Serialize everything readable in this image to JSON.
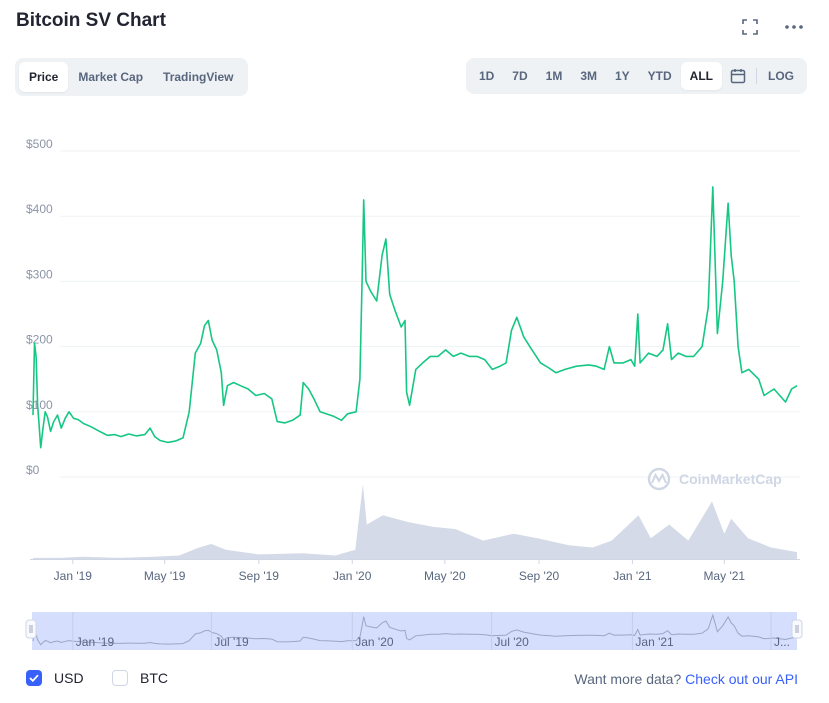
{
  "header": {
    "title": "Bitcoin SV Chart",
    "fullscreen_icon": "fullscreen-icon",
    "more_icon": "more-horizontal-icon"
  },
  "tabs": [
    {
      "label": "Price",
      "active": true
    },
    {
      "label": "Market Cap",
      "active": false
    },
    {
      "label": "TradingView",
      "active": false
    }
  ],
  "ranges": [
    {
      "label": "1D",
      "active": false
    },
    {
      "label": "7D",
      "active": false
    },
    {
      "label": "1M",
      "active": false
    },
    {
      "label": "3M",
      "active": false
    },
    {
      "label": "1Y",
      "active": false
    },
    {
      "label": "YTD",
      "active": false
    },
    {
      "label": "ALL",
      "active": true
    }
  ],
  "calendar_icon": "calendar-icon",
  "log_label": "LOG",
  "watermark": "CoinMarketCap",
  "footer": {
    "usd_label": "USD",
    "usd_checked": true,
    "btc_label": "BTC",
    "btc_checked": false,
    "api_text": "Want more data?",
    "api_link": "Check out our API"
  },
  "colors": {
    "line": "#16c784",
    "volume": "#cfd6e4",
    "navigator_fill": "#d6defd",
    "accent": "#3861fb"
  },
  "chart_data": {
    "type": "line",
    "ylim": [
      0,
      500
    ],
    "y_ticks": [
      "$0",
      "$100",
      "$200",
      "$300",
      "$400",
      "$500"
    ],
    "y_tick_values": [
      0,
      100,
      200,
      300,
      400,
      500
    ],
    "x_tick_labels": [
      "Jan '19",
      "May '19",
      "Sep '19",
      "Jan '20",
      "May '20",
      "Sep '20",
      "Jan '21",
      "May '21"
    ],
    "x_tick_dates": [
      "2019-01-01",
      "2019-05-01",
      "2019-09-01",
      "2020-01-01",
      "2020-05-01",
      "2020-09-01",
      "2021-01-01",
      "2021-05-01"
    ],
    "navigator_labels": [
      "Jan '19",
      "Jul '19",
      "Jan '20",
      "Jul '20",
      "Jan '21",
      "J..."
    ],
    "navigator_dates": [
      "2019-01-01",
      "2019-07-01",
      "2020-01-01",
      "2020-07-01",
      "2021-01-01",
      "2021-07-01"
    ],
    "grid": true,
    "price": [
      [
        "2018-11-10",
        95
      ],
      [
        "2018-11-12",
        205
      ],
      [
        "2018-11-14",
        185
      ],
      [
        "2018-11-16",
        110
      ],
      [
        "2018-11-18",
        80
      ],
      [
        "2018-11-20",
        45
      ],
      [
        "2018-11-23",
        75
      ],
      [
        "2018-11-26",
        100
      ],
      [
        "2018-11-29",
        92
      ],
      [
        "2018-12-03",
        70
      ],
      [
        "2018-12-07",
        85
      ],
      [
        "2018-12-12",
        95
      ],
      [
        "2018-12-17",
        75
      ],
      [
        "2018-12-22",
        90
      ],
      [
        "2018-12-27",
        100
      ],
      [
        "2019-01-02",
        90
      ],
      [
        "2019-01-08",
        88
      ],
      [
        "2019-01-15",
        82
      ],
      [
        "2019-01-25",
        77
      ],
      [
        "2019-02-05",
        70
      ],
      [
        "2019-02-15",
        64
      ],
      [
        "2019-02-25",
        65
      ],
      [
        "2019-03-05",
        62
      ],
      [
        "2019-03-15",
        66
      ],
      [
        "2019-03-25",
        63
      ],
      [
        "2019-04-05",
        65
      ],
      [
        "2019-04-12",
        75
      ],
      [
        "2019-04-18",
        62
      ],
      [
        "2019-04-25",
        56
      ],
      [
        "2019-05-05",
        53
      ],
      [
        "2019-05-15",
        55
      ],
      [
        "2019-05-25",
        60
      ],
      [
        "2019-06-02",
        100
      ],
      [
        "2019-06-10",
        190
      ],
      [
        "2019-06-17",
        205
      ],
      [
        "2019-06-22",
        232
      ],
      [
        "2019-06-27",
        240
      ],
      [
        "2019-07-02",
        210
      ],
      [
        "2019-07-08",
        195
      ],
      [
        "2019-07-14",
        160
      ],
      [
        "2019-07-17",
        110
      ],
      [
        "2019-07-22",
        140
      ],
      [
        "2019-07-30",
        145
      ],
      [
        "2019-08-08",
        140
      ],
      [
        "2019-08-18",
        135
      ],
      [
        "2019-08-28",
        125
      ],
      [
        "2019-09-08",
        128
      ],
      [
        "2019-09-18",
        120
      ],
      [
        "2019-09-25",
        85
      ],
      [
        "2019-10-05",
        83
      ],
      [
        "2019-10-15",
        87
      ],
      [
        "2019-10-25",
        95
      ],
      [
        "2019-10-29",
        145
      ],
      [
        "2019-11-05",
        135
      ],
      [
        "2019-11-12",
        120
      ],
      [
        "2019-11-20",
        100
      ],
      [
        "2019-11-28",
        97
      ],
      [
        "2019-12-08",
        93
      ],
      [
        "2019-12-18",
        87
      ],
      [
        "2019-12-26",
        97
      ],
      [
        "2020-01-06",
        100
      ],
      [
        "2020-01-11",
        150
      ],
      [
        "2020-01-14",
        310
      ],
      [
        "2020-01-16",
        425
      ],
      [
        "2020-01-19",
        300
      ],
      [
        "2020-01-25",
        285
      ],
      [
        "2020-02-02",
        270
      ],
      [
        "2020-02-09",
        340
      ],
      [
        "2020-02-14",
        365
      ],
      [
        "2020-02-19",
        280
      ],
      [
        "2020-02-26",
        255
      ],
      [
        "2020-03-05",
        230
      ],
      [
        "2020-03-10",
        240
      ],
      [
        "2020-03-12",
        130
      ],
      [
        "2020-03-16",
        110
      ],
      [
        "2020-03-24",
        165
      ],
      [
        "2020-04-02",
        175
      ],
      [
        "2020-04-12",
        185
      ],
      [
        "2020-04-22",
        185
      ],
      [
        "2020-05-02",
        195
      ],
      [
        "2020-05-12",
        185
      ],
      [
        "2020-05-22",
        190
      ],
      [
        "2020-06-02",
        185
      ],
      [
        "2020-06-12",
        185
      ],
      [
        "2020-06-22",
        180
      ],
      [
        "2020-07-02",
        165
      ],
      [
        "2020-07-12",
        170
      ],
      [
        "2020-07-20",
        175
      ],
      [
        "2020-07-27",
        225
      ],
      [
        "2020-08-03",
        245
      ],
      [
        "2020-08-12",
        215
      ],
      [
        "2020-08-20",
        200
      ],
      [
        "2020-09-03",
        175
      ],
      [
        "2020-09-13",
        168
      ],
      [
        "2020-09-23",
        160
      ],
      [
        "2020-10-05",
        165
      ],
      [
        "2020-10-20",
        170
      ],
      [
        "2020-11-05",
        172
      ],
      [
        "2020-11-15",
        170
      ],
      [
        "2020-11-25",
        165
      ],
      [
        "2020-12-02",
        200
      ],
      [
        "2020-12-08",
        175
      ],
      [
        "2020-12-20",
        175
      ],
      [
        "2020-12-30",
        180
      ],
      [
        "2021-01-04",
        170
      ],
      [
        "2021-01-08",
        250
      ],
      [
        "2021-01-11",
        175
      ],
      [
        "2021-01-22",
        190
      ],
      [
        "2021-02-02",
        185
      ],
      [
        "2021-02-10",
        195
      ],
      [
        "2021-02-16",
        235
      ],
      [
        "2021-02-21",
        180
      ],
      [
        "2021-03-02",
        190
      ],
      [
        "2021-03-12",
        185
      ],
      [
        "2021-03-22",
        185
      ],
      [
        "2021-04-02",
        200
      ],
      [
        "2021-04-10",
        260
      ],
      [
        "2021-04-16",
        445
      ],
      [
        "2021-04-22",
        220
      ],
      [
        "2021-04-29",
        300
      ],
      [
        "2021-05-06",
        420
      ],
      [
        "2021-05-10",
        340
      ],
      [
        "2021-05-14",
        300
      ],
      [
        "2021-05-19",
        200
      ],
      [
        "2021-05-24",
        160
      ],
      [
        "2021-06-02",
        165
      ],
      [
        "2021-06-15",
        150
      ],
      [
        "2021-06-22",
        125
      ],
      [
        "2021-07-05",
        135
      ],
      [
        "2021-07-20",
        115
      ],
      [
        "2021-07-28",
        135
      ],
      [
        "2021-08-04",
        140
      ]
    ],
    "volume": [
      [
        "2018-11-10",
        1
      ],
      [
        "2018-12-15",
        1
      ],
      [
        "2019-01-15",
        2
      ],
      [
        "2019-03-01",
        1
      ],
      [
        "2019-04-15",
        2
      ],
      [
        "2019-05-20",
        3
      ],
      [
        "2019-06-15",
        10
      ],
      [
        "2019-07-01",
        13
      ],
      [
        "2019-07-20",
        8
      ],
      [
        "2019-09-01",
        4
      ],
      [
        "2019-10-29",
        5
      ],
      [
        "2019-12-10",
        3
      ],
      [
        "2020-01-05",
        8
      ],
      [
        "2020-01-15",
        65
      ],
      [
        "2020-01-20",
        30
      ],
      [
        "2020-02-10",
        38
      ],
      [
        "2020-03-15",
        32
      ],
      [
        "2020-04-15",
        28
      ],
      [
        "2020-05-15",
        26
      ],
      [
        "2020-06-20",
        16
      ],
      [
        "2020-07-30",
        22
      ],
      [
        "2020-08-30",
        18
      ],
      [
        "2020-10-10",
        12
      ],
      [
        "2020-11-10",
        10
      ],
      [
        "2020-12-05",
        16
      ],
      [
        "2021-01-09",
        38
      ],
      [
        "2021-01-25",
        18
      ],
      [
        "2021-02-18",
        30
      ],
      [
        "2021-03-15",
        16
      ],
      [
        "2021-04-15",
        50
      ],
      [
        "2021-05-01",
        22
      ],
      [
        "2021-05-10",
        35
      ],
      [
        "2021-06-01",
        18
      ],
      [
        "2021-07-01",
        10
      ],
      [
        "2021-08-04",
        6
      ]
    ]
  }
}
